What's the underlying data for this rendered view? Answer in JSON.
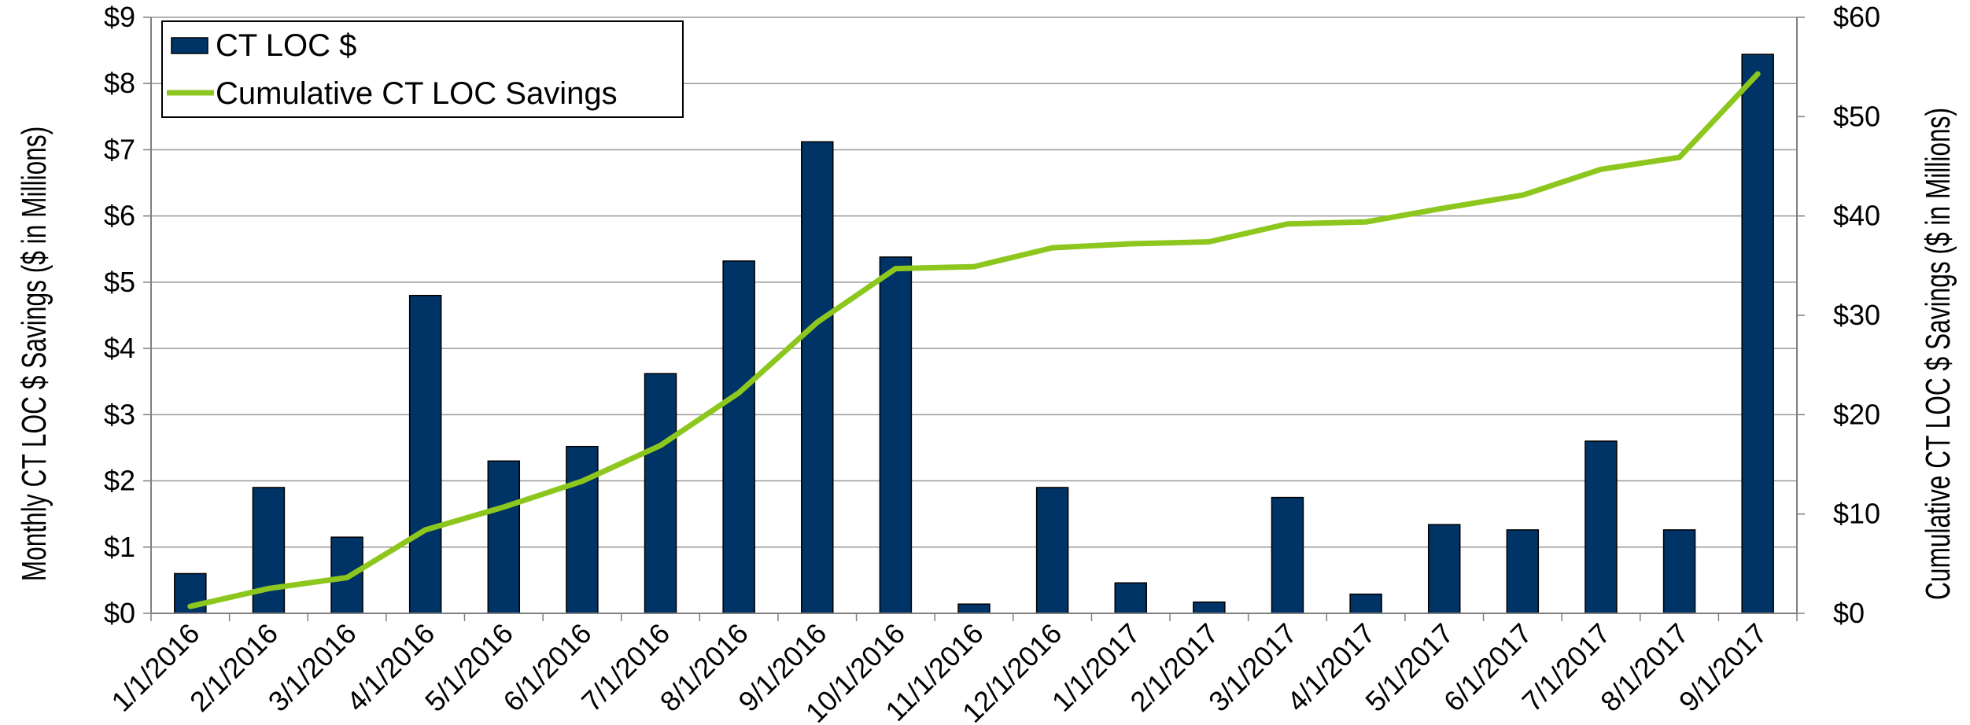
{
  "chart_data": {
    "type": "bar",
    "categories": [
      "1/1/2016",
      "2/1/2016",
      "3/1/2016",
      "4/1/2016",
      "5/1/2016",
      "6/1/2016",
      "7/1/2016",
      "8/1/2016",
      "9/1/2016",
      "10/1/2016",
      "11/1/2016",
      "12/1/2016",
      "1/1/2017",
      "2/1/2017",
      "3/1/2017",
      "4/1/2017",
      "5/1/2017",
      "6/1/2017",
      "7/1/2017",
      "8/1/2017",
      "9/1/2017"
    ],
    "series": [
      {
        "name": "CT LOC $",
        "type": "bar",
        "axis": "left",
        "color": "#003366",
        "values": [
          0.6,
          1.9,
          1.15,
          4.8,
          2.3,
          2.52,
          3.62,
          5.32,
          7.12,
          5.38,
          0.14,
          1.9,
          0.46,
          0.17,
          1.75,
          0.29,
          1.34,
          1.26,
          2.6,
          1.26,
          8.44
        ]
      },
      {
        "name": "Cumulative CT LOC Savings",
        "type": "line",
        "axis": "right",
        "color": "#8DC71E",
        "values": [
          0.7,
          2.5,
          3.6,
          8.4,
          10.7,
          13.3,
          16.9,
          22.2,
          29.3,
          34.7,
          34.9,
          36.8,
          37.2,
          37.4,
          39.2,
          39.4,
          40.8,
          42.1,
          44.7,
          45.9,
          54.3
        ]
      }
    ],
    "y_left": {
      "label": "Monthly  CT LOC $ Savings ($ in Millions)",
      "ylim": [
        0,
        9
      ],
      "ticks": [
        "$0",
        "$1",
        "$2",
        "$3",
        "$4",
        "$5",
        "$6",
        "$7",
        "$8",
        "$9"
      ]
    },
    "y_right": {
      "label": "Cumulative CT LOC $ Savings ($ in Millions)",
      "ylim": [
        0,
        60
      ],
      "ticks": [
        "$0",
        "$10",
        "$20",
        "$30",
        "$40",
        "$50",
        "$60"
      ]
    },
    "grid": true,
    "legend": "top-left"
  }
}
